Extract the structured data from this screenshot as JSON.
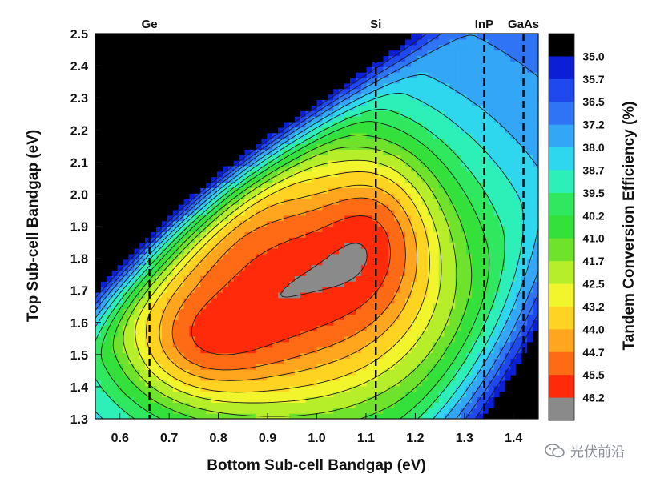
{
  "chart_data": {
    "type": "heatmap",
    "subtype": "contour",
    "xlabel": "Bottom Sub-cell Bandgap (eV)",
    "ylabel": "Top Sub-cell Bandgap (eV)",
    "colorbar_label": "Tandem Conversion Efficiency (%)",
    "xlim": [
      0.55,
      1.45
    ],
    "ylim": [
      1.3,
      2.5
    ],
    "xticks": [
      "0.6",
      "0.7",
      "0.8",
      "0.9",
      "1.0",
      "1.1",
      "1.2",
      "1.3",
      "1.4"
    ],
    "yticks": [
      "1.3",
      "1.4",
      "1.5",
      "1.6",
      "1.7",
      "1.8",
      "1.9",
      "2.0",
      "2.1",
      "2.2",
      "2.3",
      "2.4",
      "2.5"
    ],
    "colorbar_levels": [
      "35.0",
      "35.7",
      "36.5",
      "37.2",
      "38.0",
      "38.7",
      "39.5",
      "40.2",
      "41.0",
      "41.7",
      "42.5",
      "43.2",
      "44.0",
      "44.7",
      "45.5",
      "46.2"
    ],
    "colorbar_colors": [
      "#000000",
      "#0a1fd6",
      "#1f48ef",
      "#2f74f5",
      "#33a6f6",
      "#2ed7ee",
      "#2df0b8",
      "#2fe85f",
      "#34e03a",
      "#6fe22c",
      "#b6ee2a",
      "#f2f52c",
      "#ffd321",
      "#ffa51e",
      "#ff6a15",
      "#ff2a0a",
      "#8a8a8a"
    ],
    "vertical_markers": [
      {
        "label": "Ge",
        "x": 0.66
      },
      {
        "label": "Si",
        "x": 1.12
      },
      {
        "label": "InP",
        "x": 1.34
      },
      {
        "label": "GaAs",
        "x": 1.42
      }
    ],
    "peaks": [
      {
        "x": 0.95,
        "y": 1.72,
        "value": 46.2
      },
      {
        "x": 1.12,
        "y": 1.85,
        "value": 45.5
      },
      {
        "x": 0.74,
        "y": 1.55,
        "value": 44.7
      }
    ]
  },
  "watermark": {
    "text": "光伏前沿"
  }
}
